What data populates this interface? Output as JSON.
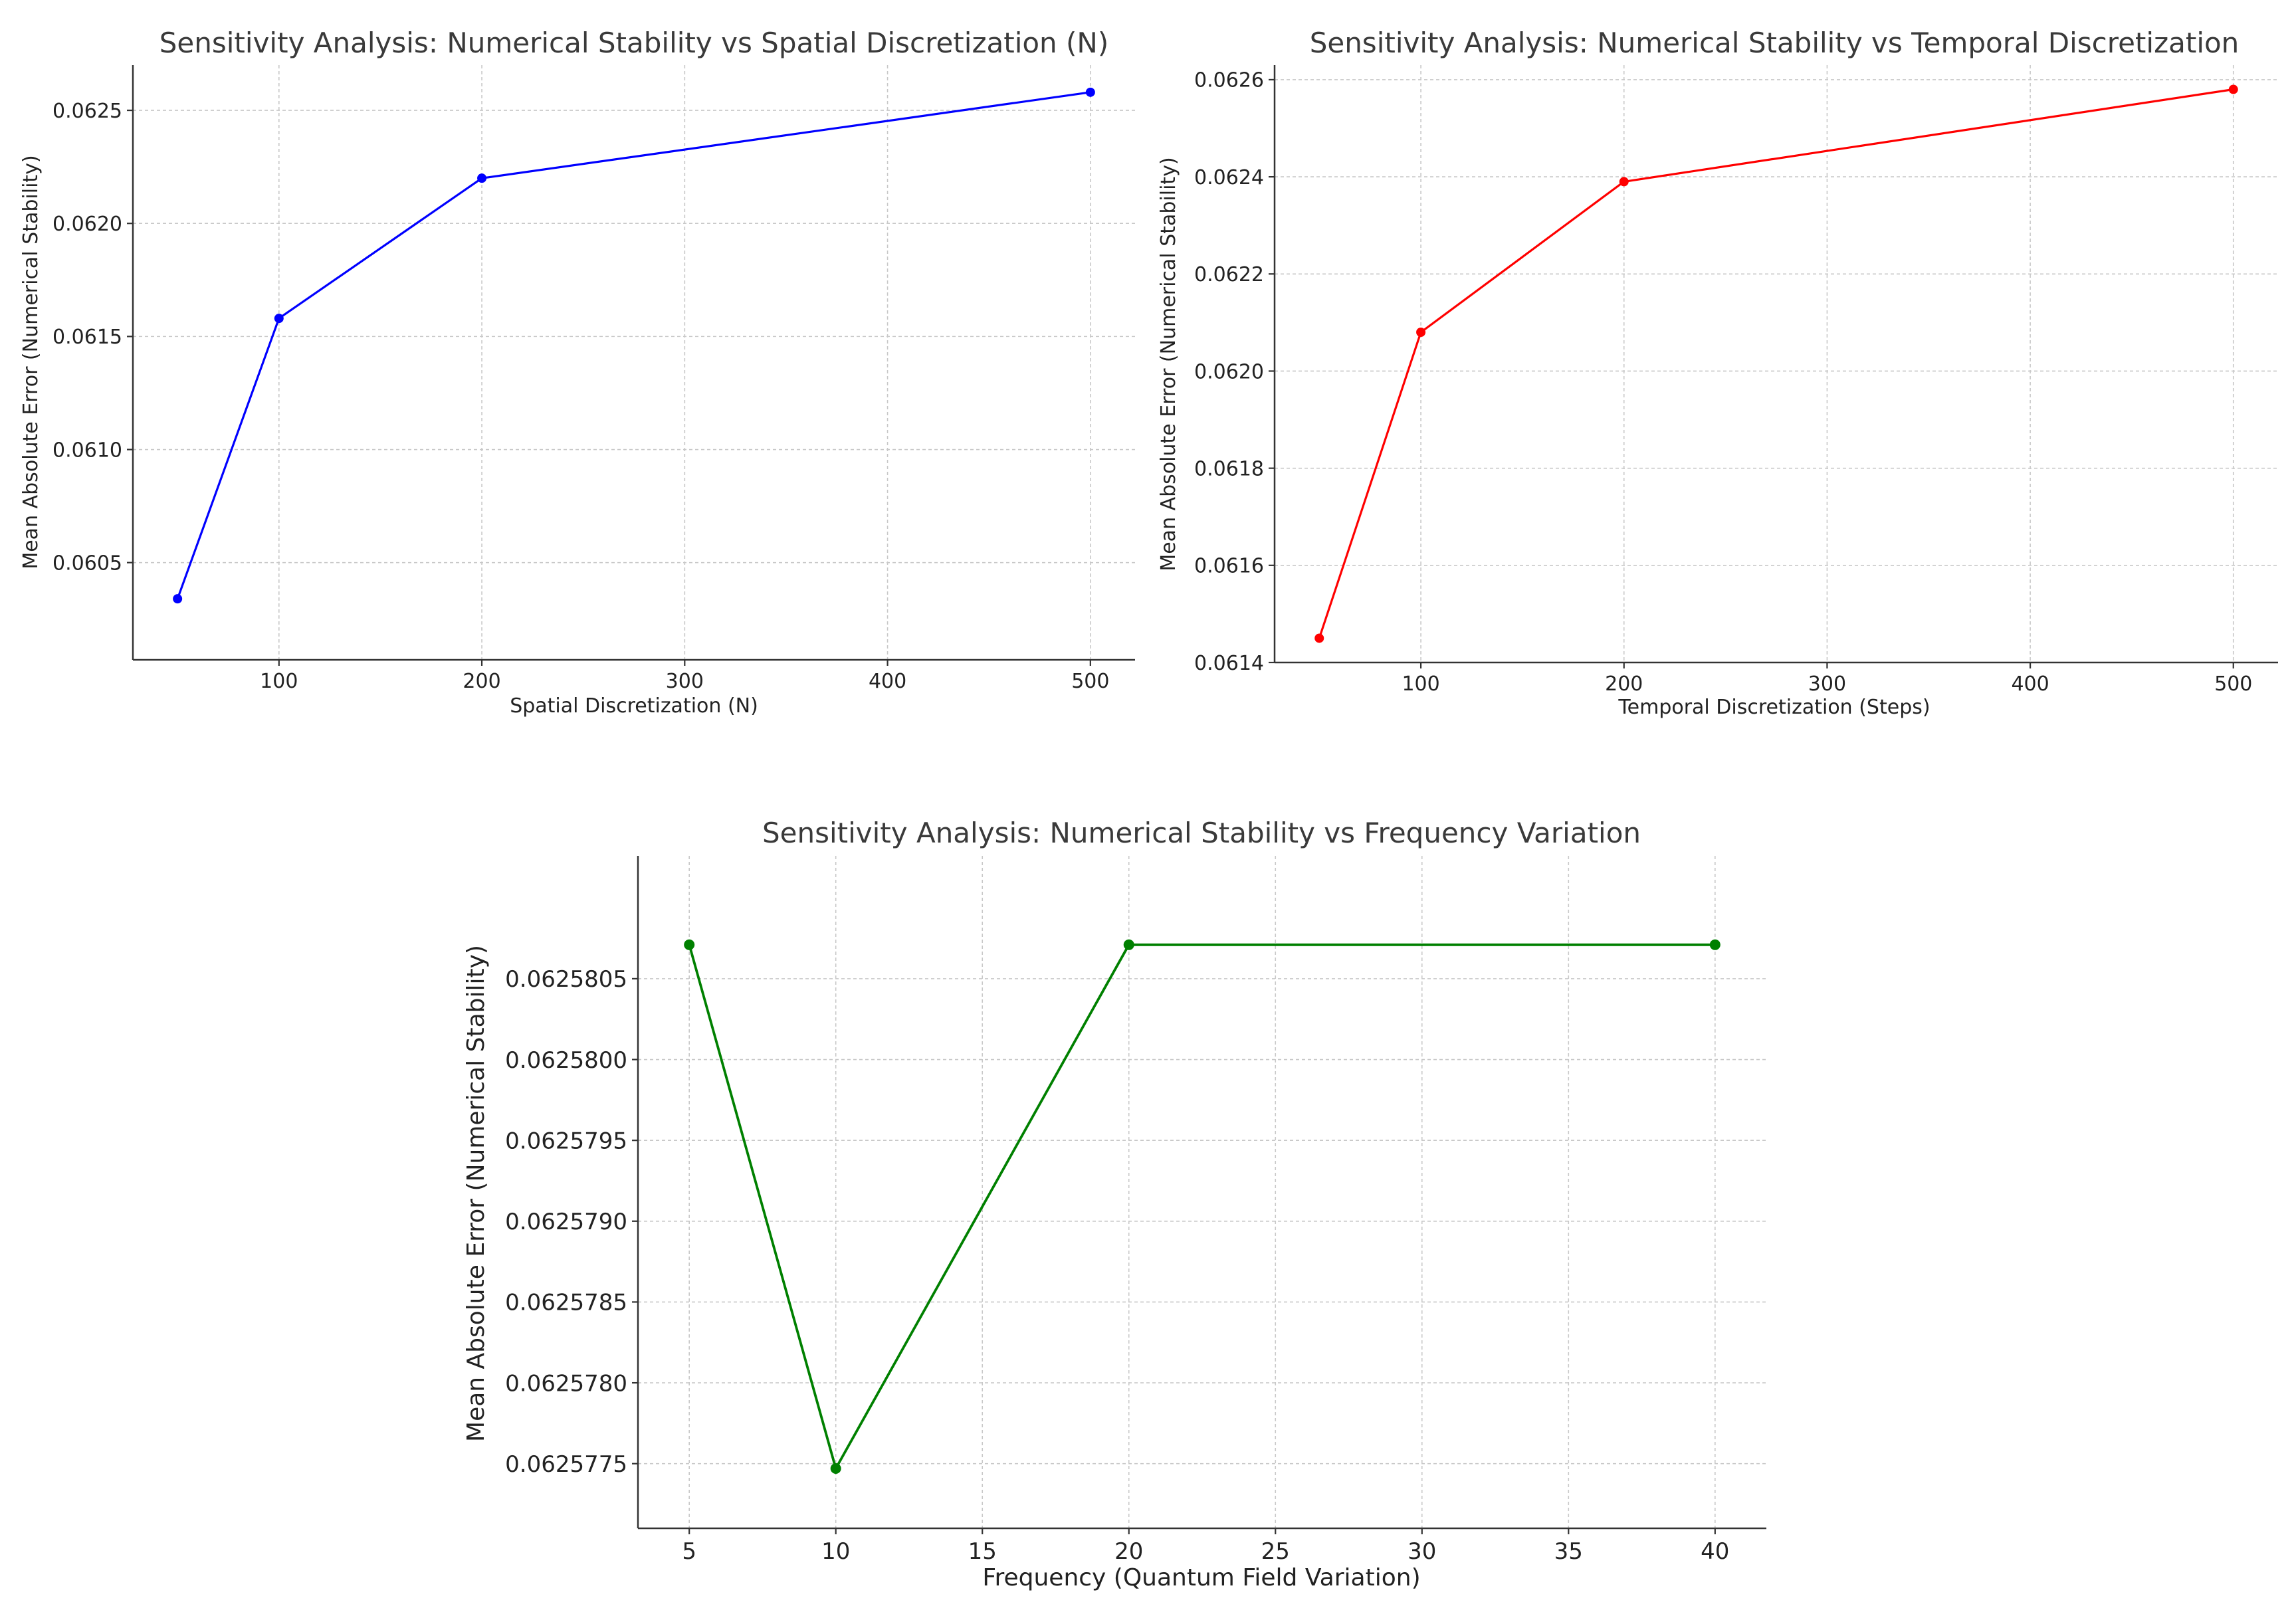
{
  "chart_data": [
    {
      "type": "line",
      "title": "Sensitivity Analysis: Numerical Stability vs Spatial Discretization (N)",
      "xlabel": "Spatial Discretization (N)",
      "ylabel": "Mean Absolute Error (Numerical Stability)",
      "color": "#0000ff",
      "grid": true,
      "x": [
        50,
        100,
        200,
        500
      ],
      "y": [
        0.06034,
        0.06158,
        0.0622,
        0.06258
      ],
      "xlim": [
        28,
        522
      ],
      "ylim": [
        0.06007,
        0.0627
      ],
      "xticks": [
        100,
        200,
        300,
        400,
        500
      ],
      "yticks": [
        0.0605,
        0.061,
        0.0615,
        0.062,
        0.0625
      ],
      "xtick_labels": [
        "100",
        "200",
        "300",
        "400",
        "500"
      ],
      "ytick_labels": [
        "0.0605",
        "0.0610",
        "0.0615",
        "0.0620",
        "0.0625"
      ]
    },
    {
      "type": "line",
      "title": "Sensitivity Analysis: Numerical Stability vs Temporal Discretization",
      "xlabel": "Temporal Discretization (Steps)",
      "ylabel": "Mean Absolute Error (Numerical Stability)",
      "color": "#ff0000",
      "grid": true,
      "x": [
        50,
        100,
        200,
        500
      ],
      "y": [
        0.06145,
        0.06208,
        0.06239,
        0.06258
      ],
      "xlim": [
        28,
        522
      ],
      "ylim": [
        0.0614,
        0.06263
      ],
      "xticks": [
        100,
        200,
        300,
        400,
        500
      ],
      "yticks": [
        0.0614,
        0.0616,
        0.0618,
        0.062,
        0.0622,
        0.0624,
        0.0626
      ],
      "xtick_labels": [
        "100",
        "200",
        "300",
        "400",
        "500"
      ],
      "ytick_labels": [
        "0.0614",
        "0.0616",
        "0.0618",
        "0.0620",
        "0.0622",
        "0.0624",
        "0.0626"
      ]
    },
    {
      "type": "line",
      "title": "Sensitivity Analysis: Numerical Stability vs Frequency Variation",
      "xlabel": "Frequency (Quantum Field Variation)",
      "ylabel": "Mean Absolute Error (Numerical Stability)",
      "color": "#008000",
      "grid": true,
      "x": [
        5,
        10,
        20,
        40
      ],
      "y": [
        0.06258071,
        0.06257747,
        0.06258071,
        0.06258071
      ],
      "xlim": [
        3.25,
        41.75
      ],
      "ylim": [
        0.0625771,
        0.06258126
      ],
      "xticks": [
        5,
        10,
        15,
        20,
        25,
        30,
        35,
        40
      ],
      "yticks": [
        0.0625775,
        0.062578,
        0.0625785,
        0.062579,
        0.0625795,
        0.06258,
        0.0625805
      ],
      "xtick_labels": [
        "5",
        "10",
        "15",
        "20",
        "25",
        "30",
        "35",
        "40"
      ],
      "ytick_labels": [
        "0.0625775",
        "0.0625780",
        "0.0625785",
        "0.0625790",
        "0.0625795",
        "0.0625800",
        "0.0625805"
      ]
    }
  ]
}
